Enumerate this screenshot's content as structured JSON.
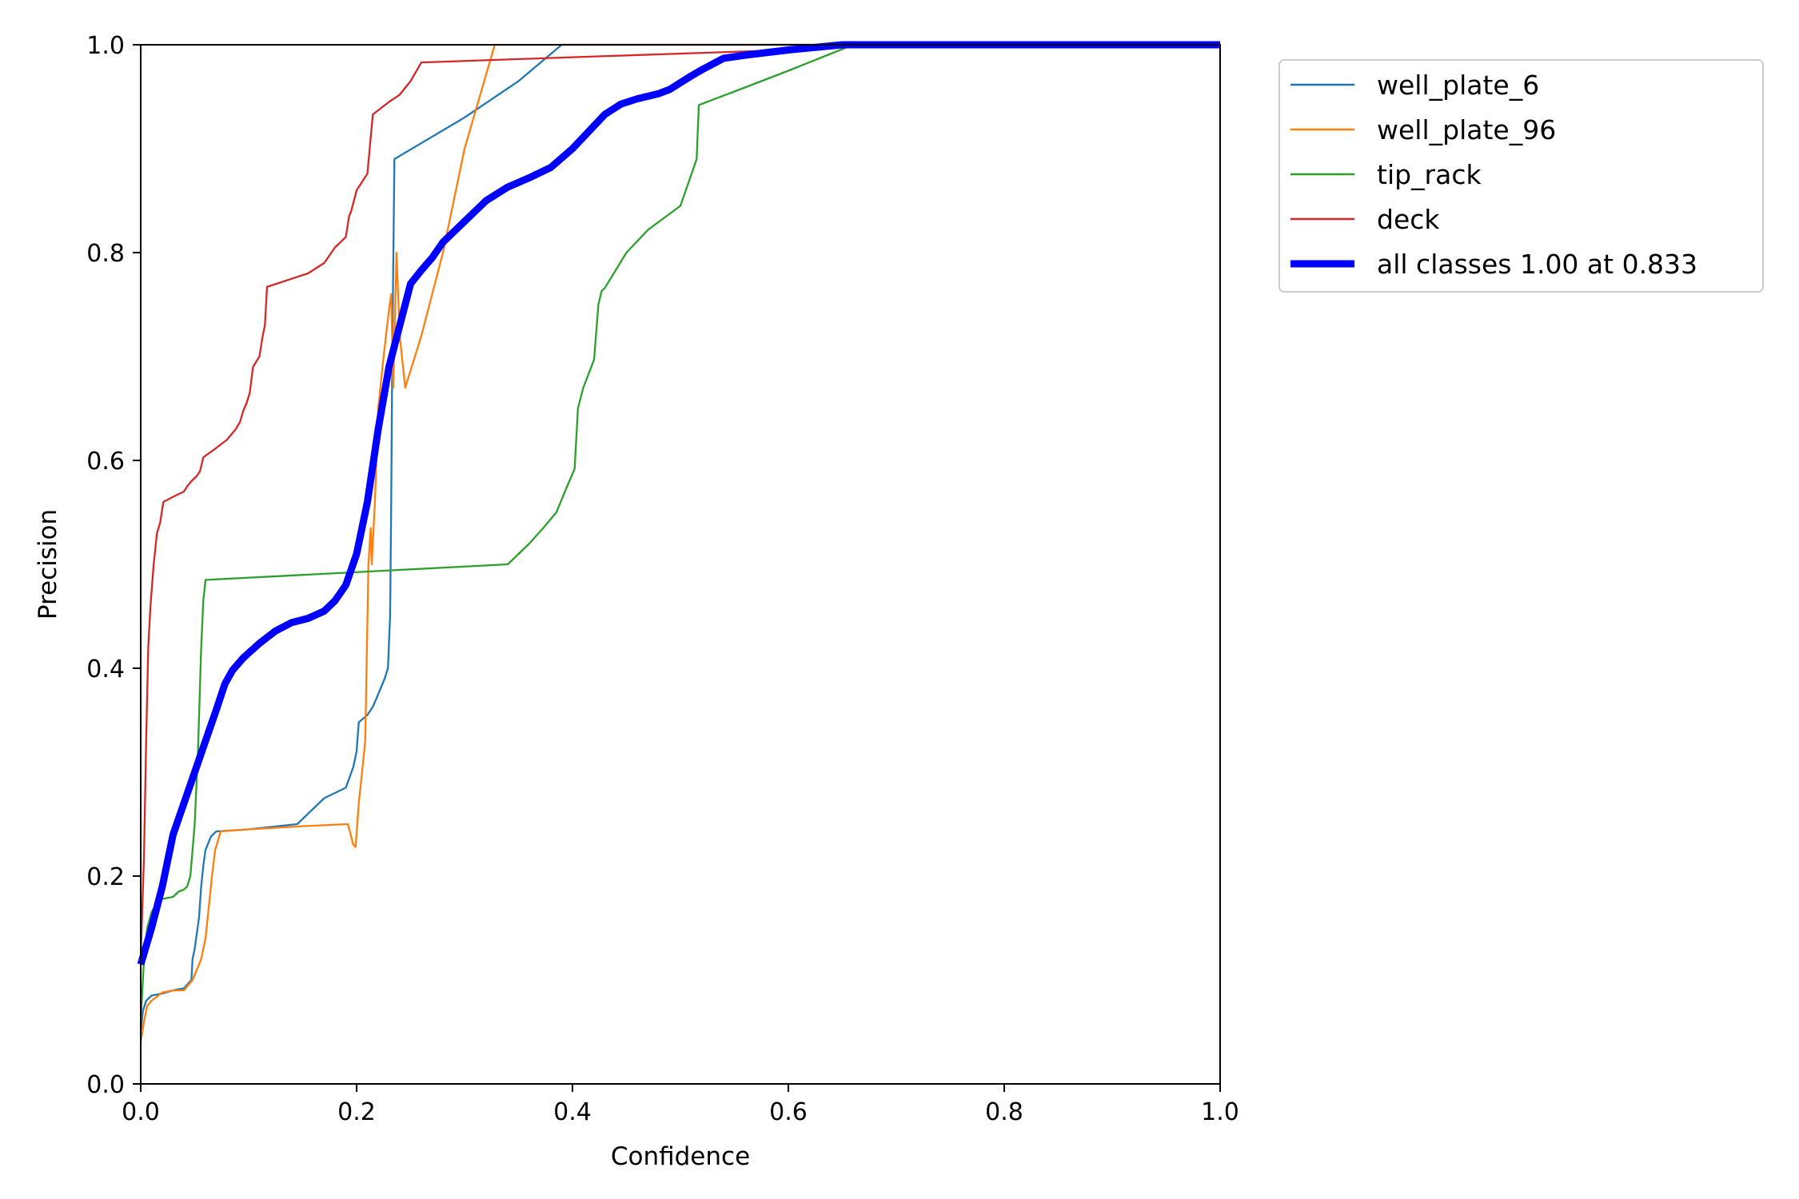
{
  "chart_data": {
    "type": "line",
    "title": "",
    "xlabel": "Confidence",
    "ylabel": "Precision",
    "xlim": [
      0,
      1
    ],
    "ylim": [
      0,
      1
    ],
    "xticks": [
      "0.0",
      "0.2",
      "0.4",
      "0.6",
      "0.8",
      "1.0"
    ],
    "yticks": [
      "0.0",
      "0.2",
      "0.4",
      "0.6",
      "0.8",
      "1.0"
    ],
    "grid": false,
    "legend_position": "outside-top-right",
    "series": [
      {
        "name": "well_plate_6",
        "color": "#1f77b4",
        "thick": false,
        "points": [
          [
            0.0,
            0.05
          ],
          [
            0.002,
            0.07
          ],
          [
            0.005,
            0.08
          ],
          [
            0.01,
            0.085
          ],
          [
            0.02,
            0.087
          ],
          [
            0.03,
            0.09
          ],
          [
            0.04,
            0.092
          ],
          [
            0.047,
            0.1
          ],
          [
            0.048,
            0.12
          ],
          [
            0.05,
            0.13
          ],
          [
            0.052,
            0.145
          ],
          [
            0.054,
            0.16
          ],
          [
            0.056,
            0.19
          ],
          [
            0.058,
            0.21
          ],
          [
            0.06,
            0.225
          ],
          [
            0.065,
            0.238
          ],
          [
            0.07,
            0.243
          ],
          [
            0.1,
            0.245
          ],
          [
            0.145,
            0.25
          ],
          [
            0.16,
            0.265
          ],
          [
            0.17,
            0.275
          ],
          [
            0.18,
            0.28
          ],
          [
            0.19,
            0.285
          ],
          [
            0.197,
            0.305
          ],
          [
            0.2,
            0.32
          ],
          [
            0.202,
            0.348
          ],
          [
            0.21,
            0.355
          ],
          [
            0.215,
            0.363
          ],
          [
            0.218,
            0.37
          ],
          [
            0.222,
            0.38
          ],
          [
            0.226,
            0.39
          ],
          [
            0.229,
            0.4
          ],
          [
            0.231,
            0.45
          ],
          [
            0.232,
            0.55
          ],
          [
            0.233,
            0.7
          ],
          [
            0.235,
            0.89
          ],
          [
            0.3,
            0.93
          ],
          [
            0.35,
            0.965
          ],
          [
            0.39,
            1.0
          ],
          [
            1.0,
            1.0
          ]
        ]
      },
      {
        "name": "well_plate_96",
        "color": "#ff7f0e",
        "thick": false,
        "points": [
          [
            0.0,
            0.04
          ],
          [
            0.003,
            0.06
          ],
          [
            0.006,
            0.075
          ],
          [
            0.01,
            0.08
          ],
          [
            0.02,
            0.088
          ],
          [
            0.03,
            0.09
          ],
          [
            0.04,
            0.09
          ],
          [
            0.048,
            0.1
          ],
          [
            0.052,
            0.11
          ],
          [
            0.056,
            0.12
          ],
          [
            0.06,
            0.14
          ],
          [
            0.063,
            0.17
          ],
          [
            0.066,
            0.2
          ],
          [
            0.069,
            0.225
          ],
          [
            0.074,
            0.243
          ],
          [
            0.1,
            0.245
          ],
          [
            0.15,
            0.248
          ],
          [
            0.192,
            0.25
          ],
          [
            0.197,
            0.23
          ],
          [
            0.199,
            0.228
          ],
          [
            0.202,
            0.27
          ],
          [
            0.205,
            0.3
          ],
          [
            0.208,
            0.33
          ],
          [
            0.211,
            0.5
          ],
          [
            0.213,
            0.535
          ],
          [
            0.214,
            0.5
          ],
          [
            0.217,
            0.56
          ],
          [
            0.22,
            0.65
          ],
          [
            0.225,
            0.7
          ],
          [
            0.23,
            0.745
          ],
          [
            0.232,
            0.76
          ],
          [
            0.234,
            0.67
          ],
          [
            0.237,
            0.8
          ],
          [
            0.24,
            0.72
          ],
          [
            0.245,
            0.67
          ],
          [
            0.26,
            0.72
          ],
          [
            0.28,
            0.8
          ],
          [
            0.3,
            0.9
          ],
          [
            0.328,
            1.0
          ],
          [
            1.0,
            1.0
          ]
        ]
      },
      {
        "name": "tip_rack",
        "color": "#2ca02c",
        "thick": false,
        "points": [
          [
            0.0,
            0.06
          ],
          [
            0.003,
            0.12
          ],
          [
            0.006,
            0.15
          ],
          [
            0.01,
            0.165
          ],
          [
            0.015,
            0.175
          ],
          [
            0.02,
            0.178
          ],
          [
            0.03,
            0.18
          ],
          [
            0.035,
            0.185
          ],
          [
            0.04,
            0.187
          ],
          [
            0.043,
            0.19
          ],
          [
            0.046,
            0.2
          ],
          [
            0.05,
            0.25
          ],
          [
            0.053,
            0.32
          ],
          [
            0.056,
            0.42
          ],
          [
            0.058,
            0.465
          ],
          [
            0.06,
            0.485
          ],
          [
            0.34,
            0.5
          ],
          [
            0.36,
            0.52
          ],
          [
            0.373,
            0.535
          ],
          [
            0.385,
            0.55
          ],
          [
            0.395,
            0.575
          ],
          [
            0.402,
            0.592
          ],
          [
            0.405,
            0.65
          ],
          [
            0.41,
            0.67
          ],
          [
            0.42,
            0.697
          ],
          [
            0.424,
            0.75
          ],
          [
            0.427,
            0.763
          ],
          [
            0.43,
            0.766
          ],
          [
            0.45,
            0.8
          ],
          [
            0.47,
            0.822
          ],
          [
            0.5,
            0.845
          ],
          [
            0.515,
            0.89
          ],
          [
            0.517,
            0.942
          ],
          [
            0.55,
            0.955
          ],
          [
            0.6,
            0.975
          ],
          [
            0.66,
            1.0
          ],
          [
            1.0,
            1.0
          ]
        ]
      },
      {
        "name": "deck",
        "color": "#d62728",
        "thick": false,
        "points": [
          [
            0.0,
            0.12
          ],
          [
            0.003,
            0.22
          ],
          [
            0.005,
            0.33
          ],
          [
            0.007,
            0.42
          ],
          [
            0.009,
            0.46
          ],
          [
            0.012,
            0.5
          ],
          [
            0.015,
            0.53
          ],
          [
            0.018,
            0.54
          ],
          [
            0.021,
            0.56
          ],
          [
            0.03,
            0.565
          ],
          [
            0.04,
            0.57
          ],
          [
            0.043,
            0.575
          ],
          [
            0.047,
            0.58
          ],
          [
            0.052,
            0.585
          ],
          [
            0.055,
            0.59
          ],
          [
            0.058,
            0.603
          ],
          [
            0.07,
            0.612
          ],
          [
            0.08,
            0.62
          ],
          [
            0.088,
            0.63
          ],
          [
            0.092,
            0.637
          ],
          [
            0.095,
            0.648
          ],
          [
            0.098,
            0.655
          ],
          [
            0.101,
            0.665
          ],
          [
            0.104,
            0.69
          ],
          [
            0.11,
            0.7
          ],
          [
            0.113,
            0.72
          ],
          [
            0.115,
            0.73
          ],
          [
            0.117,
            0.767
          ],
          [
            0.155,
            0.78
          ],
          [
            0.17,
            0.79
          ],
          [
            0.18,
            0.805
          ],
          [
            0.19,
            0.815
          ],
          [
            0.193,
            0.835
          ],
          [
            0.195,
            0.84
          ],
          [
            0.2,
            0.86
          ],
          [
            0.205,
            0.868
          ],
          [
            0.21,
            0.876
          ],
          [
            0.215,
            0.933
          ],
          [
            0.23,
            0.945
          ],
          [
            0.24,
            0.952
          ],
          [
            0.25,
            0.965
          ],
          [
            0.26,
            0.983
          ],
          [
            0.4,
            0.988
          ],
          [
            0.6,
            0.995
          ],
          [
            0.67,
            1.0
          ],
          [
            1.0,
            1.0
          ]
        ]
      },
      {
        "name": "all classes 1.00 at 0.833",
        "color": "#0000ff",
        "thick": true,
        "points": [
          [
            0.0,
            0.115
          ],
          [
            0.01,
            0.15
          ],
          [
            0.02,
            0.19
          ],
          [
            0.03,
            0.24
          ],
          [
            0.05,
            0.3
          ],
          [
            0.06,
            0.33
          ],
          [
            0.07,
            0.36
          ],
          [
            0.078,
            0.385
          ],
          [
            0.085,
            0.398
          ],
          [
            0.095,
            0.41
          ],
          [
            0.11,
            0.424
          ],
          [
            0.125,
            0.436
          ],
          [
            0.14,
            0.444
          ],
          [
            0.155,
            0.448
          ],
          [
            0.17,
            0.455
          ],
          [
            0.18,
            0.465
          ],
          [
            0.19,
            0.48
          ],
          [
            0.2,
            0.51
          ],
          [
            0.21,
            0.56
          ],
          [
            0.22,
            0.63
          ],
          [
            0.23,
            0.69
          ],
          [
            0.24,
            0.73
          ],
          [
            0.25,
            0.77
          ],
          [
            0.26,
            0.783
          ],
          [
            0.27,
            0.795
          ],
          [
            0.28,
            0.81
          ],
          [
            0.3,
            0.83
          ],
          [
            0.32,
            0.85
          ],
          [
            0.34,
            0.863
          ],
          [
            0.36,
            0.872
          ],
          [
            0.38,
            0.882
          ],
          [
            0.4,
            0.9
          ],
          [
            0.42,
            0.922
          ],
          [
            0.43,
            0.933
          ],
          [
            0.445,
            0.943
          ],
          [
            0.46,
            0.948
          ],
          [
            0.48,
            0.953
          ],
          [
            0.49,
            0.957
          ],
          [
            0.51,
            0.97
          ],
          [
            0.52,
            0.976
          ],
          [
            0.54,
            0.987
          ],
          [
            0.56,
            0.99
          ],
          [
            0.6,
            0.995
          ],
          [
            0.65,
            1.0
          ],
          [
            0.7,
            1.0
          ],
          [
            1.0,
            1.0
          ]
        ]
      }
    ]
  }
}
